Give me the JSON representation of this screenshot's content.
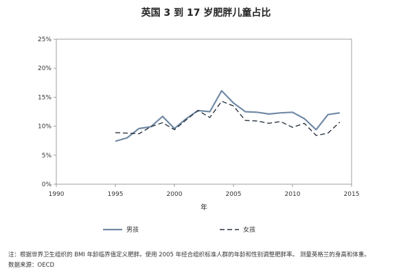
{
  "chart_data": {
    "type": "line",
    "title": "英国 3 到 17 岁肥胖儿童占比",
    "xlabel": "年",
    "ylabel": "",
    "xlim": [
      1990,
      2015
    ],
    "ylim": [
      0,
      25
    ],
    "x_ticks": [
      "1990",
      "1995",
      "2000",
      "2005",
      "2010",
      "2015"
    ],
    "y_ticks": [
      "0%",
      "5%",
      "10%",
      "15%",
      "20%",
      "25%"
    ],
    "grid": false,
    "legend_position": "bottom",
    "x": [
      1995,
      1996,
      1997,
      1998,
      1999,
      2000,
      2001,
      2002,
      2003,
      2004,
      2005,
      2006,
      2007,
      2008,
      2009,
      2010,
      2011,
      2012,
      2013,
      2014
    ],
    "series": [
      {
        "name": "男孩",
        "style": "solid",
        "color": "#7089a5",
        "values": [
          7.4,
          8.0,
          9.6,
          9.9,
          11.7,
          9.6,
          11.3,
          12.7,
          12.5,
          16.1,
          14.0,
          12.5,
          12.4,
          12.1,
          12.3,
          12.4,
          11.3,
          9.4,
          12.0,
          12.3
        ]
      },
      {
        "name": "女孩",
        "style": "dashed",
        "color": "#2b3440",
        "values": [
          8.9,
          8.8,
          8.7,
          9.9,
          10.6,
          9.4,
          11.1,
          12.7,
          11.5,
          14.3,
          13.5,
          11.0,
          10.9,
          10.5,
          10.8,
          9.8,
          10.5,
          8.4,
          8.8,
          10.7
        ]
      }
    ]
  },
  "notes": {
    "line1": "注：根据世界卫生组织的 BMI 年龄临界值定义肥胖。使用 2005 年经合组织标准人群的年龄和性别调整肥胖率。 测量英格兰的身高和体重。",
    "line2": "数据来源：OECD"
  }
}
